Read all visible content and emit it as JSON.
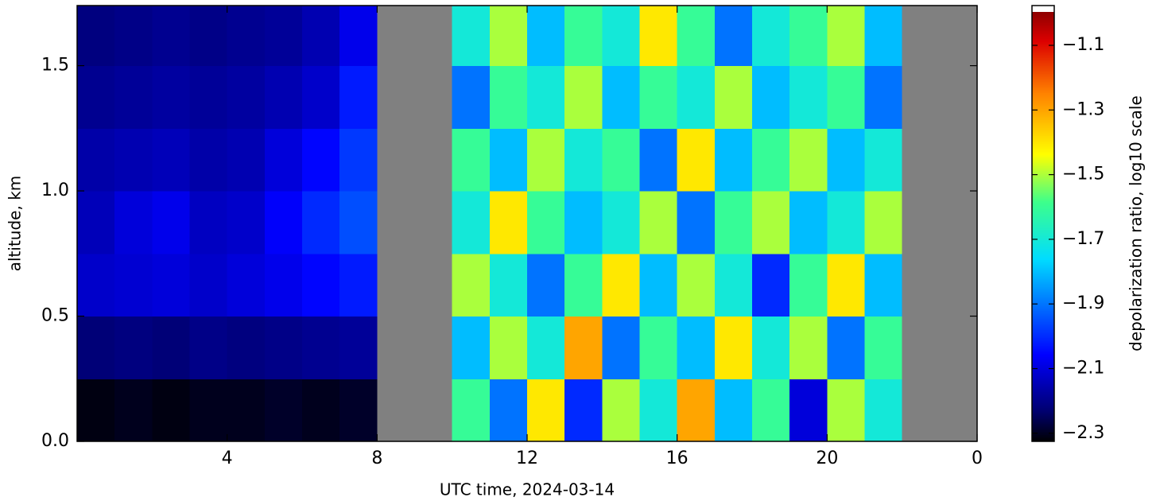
{
  "chart_data": {
    "type": "heatmap",
    "xlabel": "UTC time,  2024-03-14",
    "ylabel": "altitude, km",
    "colorbar_label": "depolarization ratio, log10 scale",
    "xlim": [
      0,
      24
    ],
    "ylim": [
      0,
      1.74
    ],
    "clim": [
      -2.325,
      -0.977
    ],
    "xticks": [
      4,
      8,
      12,
      16,
      20,
      {
        "value": 24,
        "label": "0"
      }
    ],
    "yticks": [
      {
        "value": 0,
        "label": "0.0"
      },
      0.5,
      {
        "value": 1,
        "label": "1.0"
      },
      1.5
    ],
    "cticks": [
      {
        "value": -1.1,
        "label": "−1.1"
      },
      {
        "value": -1.3,
        "label": "−1.3"
      },
      {
        "value": -1.5,
        "label": "−1.5"
      },
      {
        "value": -1.7,
        "label": "−1.7"
      },
      {
        "value": -1.9,
        "label": "−1.9"
      },
      {
        "value": -2.1,
        "label": "−2.1"
      },
      {
        "value": -2.3,
        "label": "−2.3"
      }
    ],
    "colormap": "jet",
    "missing_color": "#808080",
    "x_edges": [
      0,
      1,
      2,
      3,
      4,
      5,
      6,
      7,
      8,
      9,
      10,
      11,
      12,
      13,
      14,
      15,
      16,
      17,
      18,
      19,
      20,
      21,
      22,
      23,
      24
    ],
    "y_edges": [
      0,
      0.25,
      0.5,
      0.75,
      1.0,
      1.25,
      1.5,
      1.75
    ],
    "z": [
      [
        -2.31,
        -2.3,
        -2.31,
        -2.3,
        -2.3,
        -2.29,
        -2.3,
        -2.29,
        null,
        null,
        -1.6,
        -1.9,
        -1.4,
        -2.0,
        -1.5,
        -1.7,
        -1.3,
        -1.8,
        -1.6,
        -2.1,
        -1.5,
        -1.7,
        null,
        null
      ],
      [
        -2.22,
        -2.21,
        -2.22,
        -2.2,
        -2.21,
        -2.2,
        -2.19,
        -2.18,
        null,
        null,
        -1.8,
        -1.5,
        -1.7,
        -1.3,
        -1.9,
        -1.6,
        -1.8,
        -1.4,
        -1.7,
        -1.5,
        -1.9,
        -1.6,
        null,
        null
      ],
      [
        -2.12,
        -2.11,
        -2.1,
        -2.12,
        -2.1,
        -2.08,
        -2.05,
        -2.02,
        null,
        null,
        -1.5,
        -1.7,
        -1.9,
        -1.6,
        -1.4,
        -1.8,
        -1.5,
        -1.7,
        -2.0,
        -1.6,
        -1.4,
        -1.8,
        null,
        null
      ],
      [
        -2.14,
        -2.1,
        -2.08,
        -2.13,
        -2.12,
        -2.06,
        -2.0,
        -1.95,
        null,
        null,
        -1.7,
        -1.4,
        -1.6,
        -1.8,
        -1.7,
        -1.5,
        -1.9,
        -1.6,
        -1.5,
        -1.8,
        -1.7,
        -1.5,
        null,
        null
      ],
      [
        -2.16,
        -2.15,
        -2.14,
        -2.16,
        -2.15,
        -2.1,
        -2.05,
        -1.98,
        null,
        null,
        -1.6,
        -1.8,
        -1.5,
        -1.7,
        -1.6,
        -1.9,
        -1.4,
        -1.8,
        -1.6,
        -1.5,
        -1.8,
        -1.7,
        null,
        null
      ],
      [
        -2.19,
        -2.18,
        -2.17,
        -2.18,
        -2.17,
        -2.15,
        -2.12,
        -2.02,
        null,
        null,
        -1.9,
        -1.6,
        -1.7,
        -1.5,
        -1.8,
        -1.6,
        -1.7,
        -1.5,
        -1.8,
        -1.7,
        -1.6,
        -1.9,
        null,
        null
      ],
      [
        -2.21,
        -2.2,
        -2.19,
        -2.2,
        -2.19,
        -2.18,
        -2.15,
        -2.08,
        null,
        null,
        -1.7,
        -1.5,
        -1.8,
        -1.6,
        -1.7,
        -1.4,
        -1.6,
        -1.9,
        -1.7,
        -1.6,
        -1.5,
        -1.8,
        null,
        null
      ]
    ]
  }
}
